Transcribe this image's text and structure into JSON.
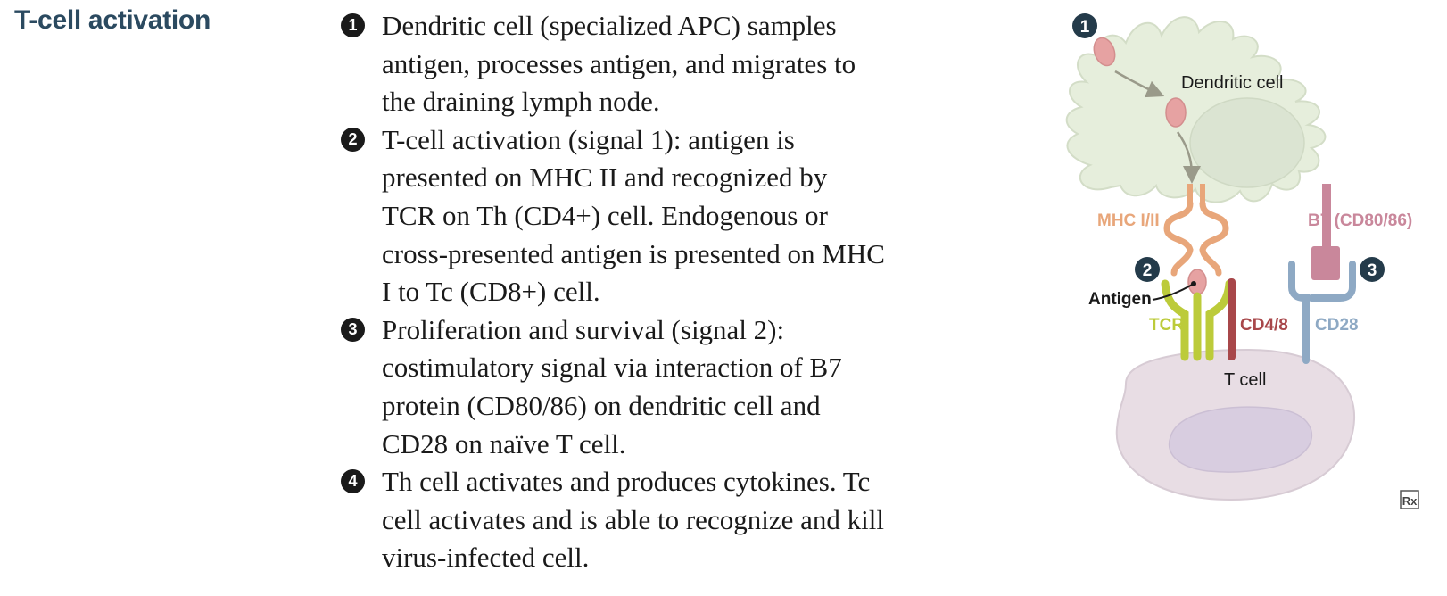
{
  "title": "T-cell activation",
  "steps": [
    {
      "number": "1",
      "lines": [
        "Dendritic cell (specialized APC) samples",
        "antigen, processes antigen, and migrates to",
        "the draining lymph node."
      ]
    },
    {
      "number": "2",
      "lines": [
        "T-cell activation (signal 1): antigen is",
        "presented on MHC II and recognized by",
        "TCR on Th (CD4+) cell. Endogenous or",
        "cross-presented antigen is presented on MHC",
        "I to Tc (CD8+) cell."
      ]
    },
    {
      "number": "3",
      "lines": [
        "Proliferation and survival (signal 2):",
        "costimulatory signal via interaction of B7",
        "protein (CD80/86) on dendritic cell and",
        "CD28 on naïve T cell."
      ]
    },
    {
      "number": "4",
      "lines": [
        "Th cell activates and produces cytokines. Tc",
        "cell activates and is able to recognize and kill",
        "virus-infected cell."
      ]
    }
  ],
  "diagram": {
    "dendritic_label": "Dendritic cell",
    "tcell_label": "T cell",
    "mhc_label": "MHC I/II",
    "b7_label": "B7 (CD80/86)",
    "antigen_label": "Antigen",
    "tcr_label": "TCR",
    "cd48_label": "CD4/8",
    "cd28_label": "CD28",
    "marker_1": "1",
    "marker_2": "2",
    "marker_3": "3",
    "logo": "Rx",
    "colors": {
      "dendritic_fill": "#e6eedc",
      "nucleus_fill": "#dbe4d2",
      "tcell_fill": "#e8dde4",
      "tcell_nucleus": "#d8cde0",
      "antigen": "#e6a2a2",
      "mhc": "#e8a67a",
      "b7": "#c9879b",
      "tcr": "#bccb3a",
      "cd48": "#a8474a",
      "cd28": "#8ea9c4",
      "title": "#2b4a60"
    }
  }
}
